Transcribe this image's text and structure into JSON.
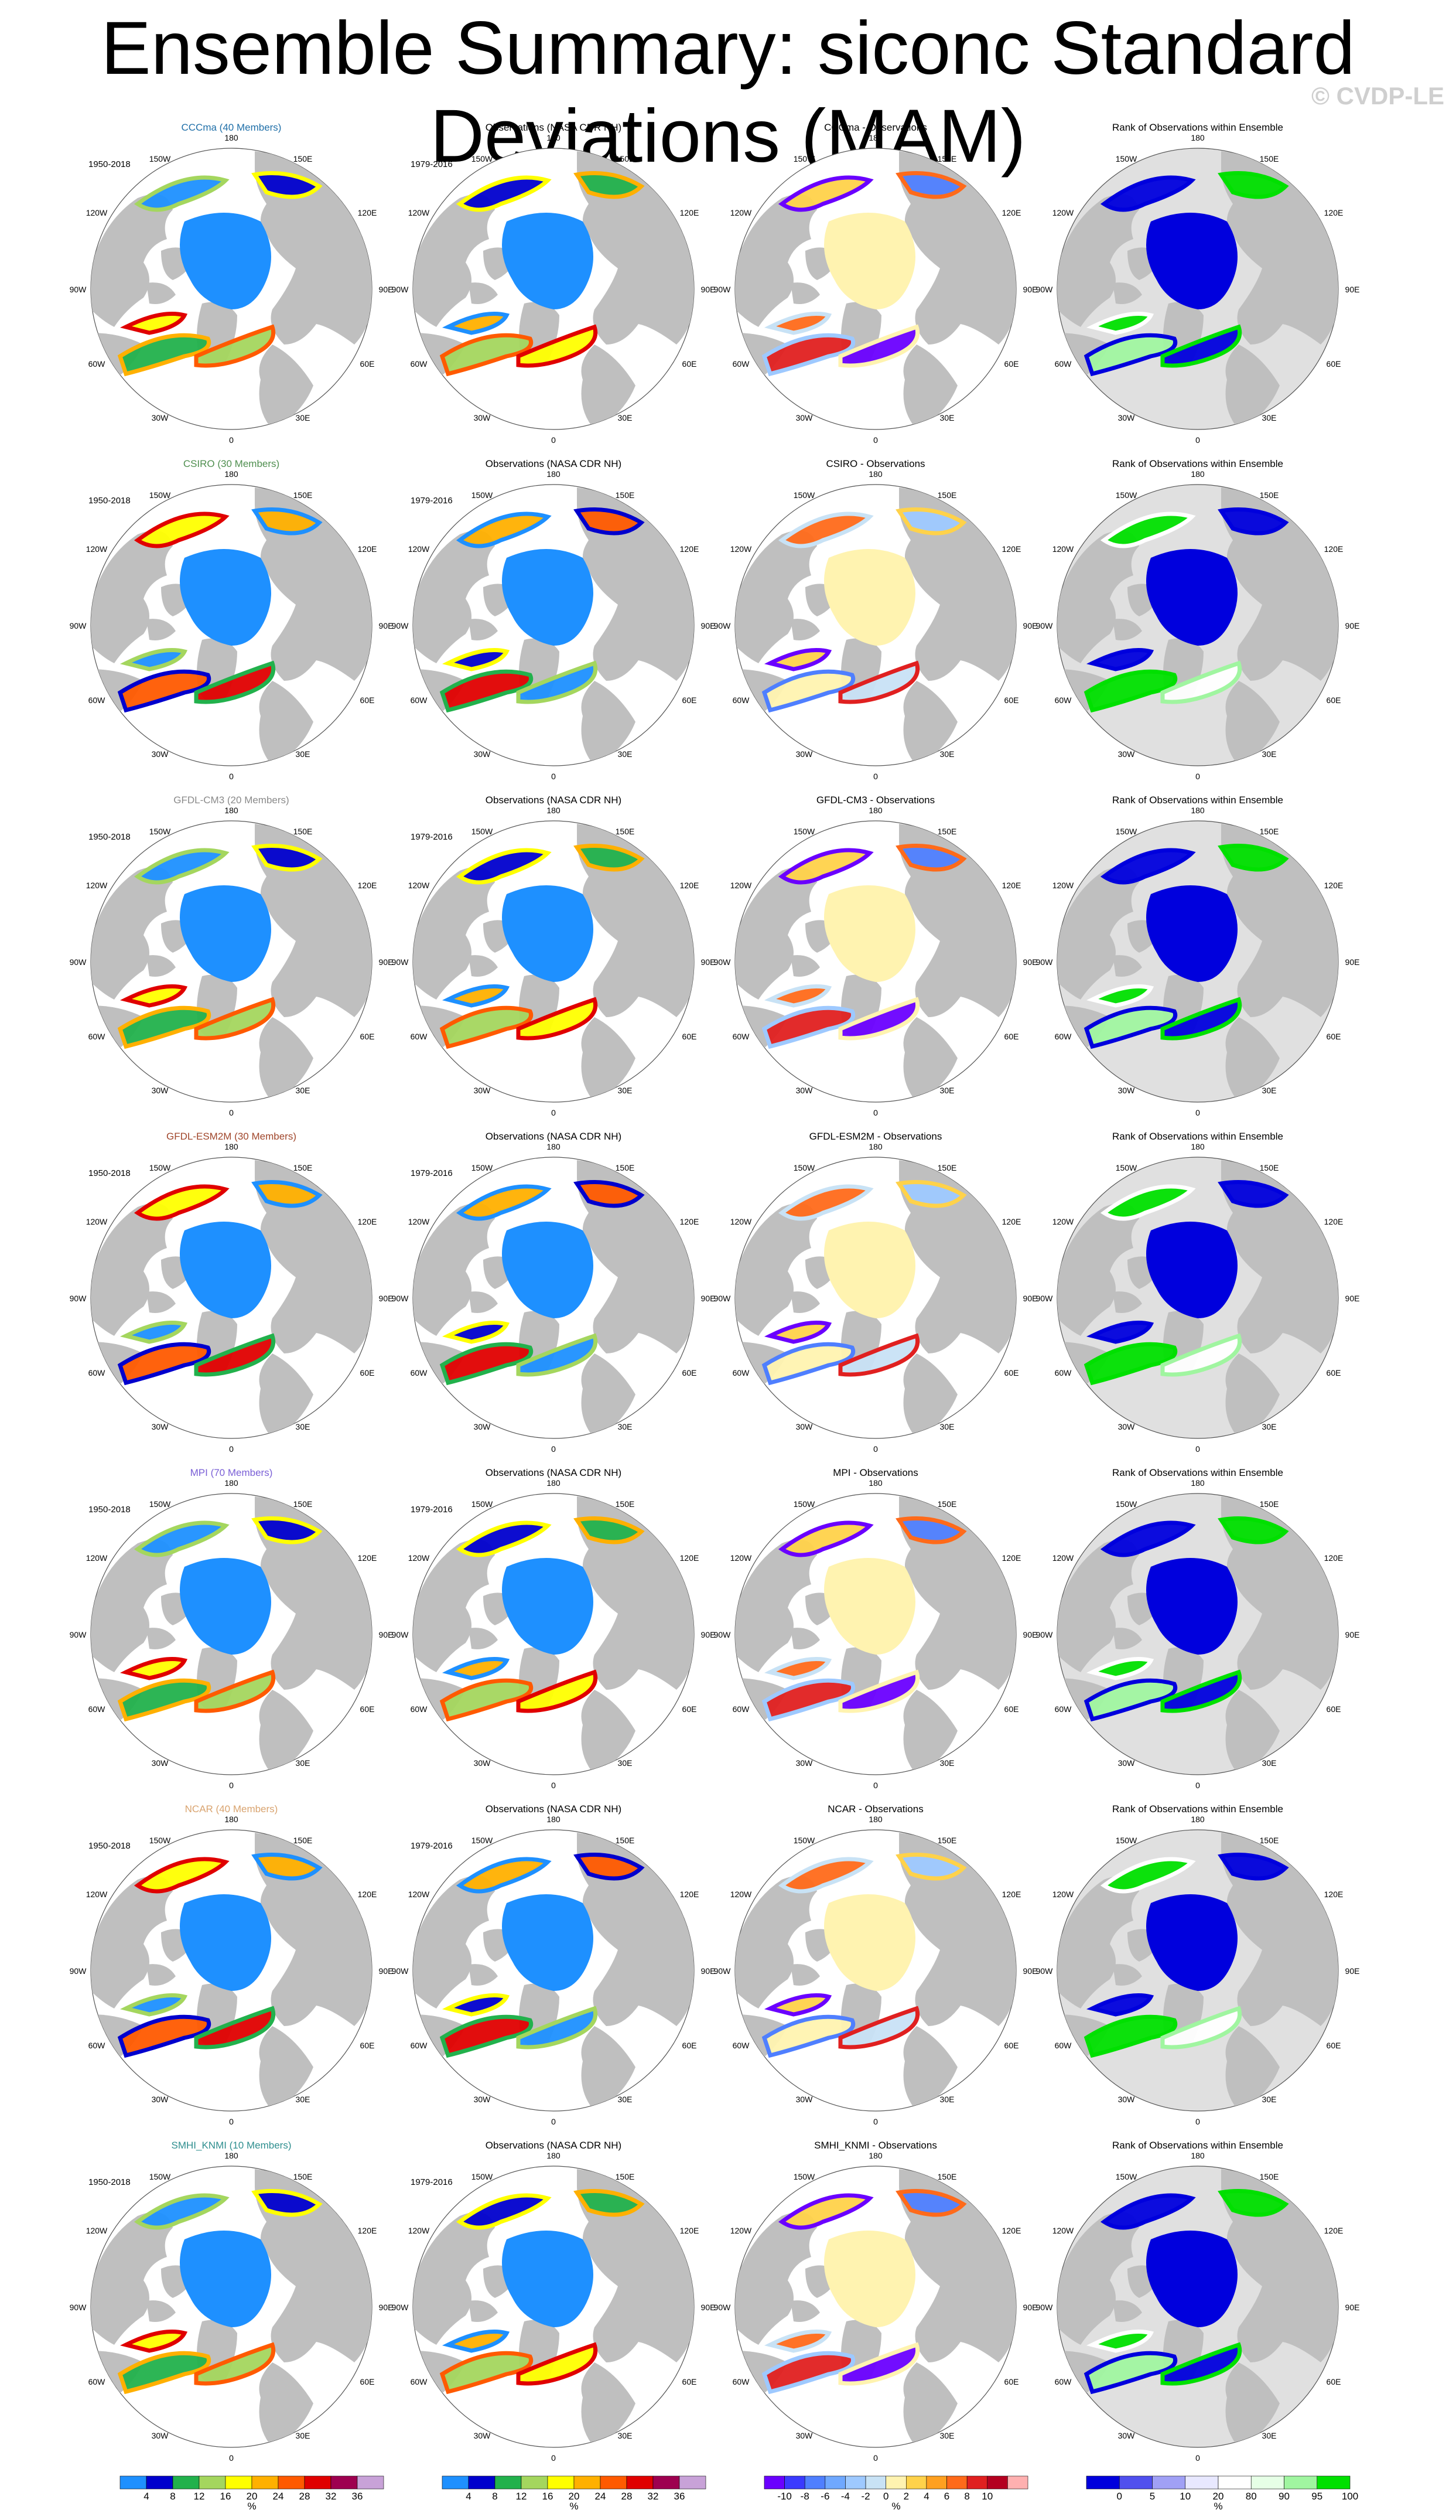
{
  "title": "Ensemble Summary: siconc Standard Deviations (MAM)",
  "copyright": "© CVDP-LE",
  "model_periods": "1950-2018",
  "obs_period": "1979-2016",
  "obs_title": "Observations (NASA CDR NH)",
  "rank_title": "Rank of Observations within Ensemble",
  "models": [
    {
      "title": "CCCma (40 Members)",
      "diff_title": "CCCma - Observations",
      "color": "#1f6fa8"
    },
    {
      "title": "CSIRO (30 Members)",
      "diff_title": "CSIRO - Observations",
      "color": "#4f8f4f"
    },
    {
      "title": "GFDL-CM3 (20 Members)",
      "diff_title": "GFDL-CM3 - Observations",
      "color": "#8a8a8a"
    },
    {
      "title": "GFDL-ESM2M (30 Members)",
      "diff_title": "GFDL-ESM2M - Observations",
      "color": "#a0462b"
    },
    {
      "title": "MPI (70 Members)",
      "diff_title": "MPI - Observations",
      "color": "#7a5fd6"
    },
    {
      "title": "NCAR (40 Members)",
      "diff_title": "NCAR - Observations",
      "color": "#d9a470"
    },
    {
      "title": "SMHI_KNMI (10 Members)",
      "diff_title": "SMHI_KNMI - Observations",
      "color": "#2f8f8f"
    }
  ],
  "map_labels": {
    "top": "180",
    "bottom": "0",
    "upper_left": "150W",
    "upper_right": "150E",
    "mid_left_upper": "120W",
    "mid_right_upper": "120E",
    "left": "90W",
    "right": "90E",
    "mid_left_lower": "60W",
    "mid_right_lower": "60E",
    "lower_left": "30W",
    "lower_right": "30E"
  },
  "colorbars": {
    "sd": {
      "labels": [
        "4",
        "8",
        "12",
        "16",
        "20",
        "24",
        "28",
        "32",
        "36"
      ],
      "unit": "%",
      "colors": [
        "#1e90ff",
        "#0000cd",
        "#22b14c",
        "#a4d65e",
        "#ffff00",
        "#ffb000",
        "#ff5a00",
        "#e00000",
        "#9e0050",
        "#c8a2d8"
      ]
    },
    "diff": {
      "labels": [
        "-10",
        "-8",
        "-6",
        "-4",
        "-2",
        "0",
        "2",
        "4",
        "6",
        "8",
        "10"
      ],
      "unit": "%",
      "colors": [
        "#6a00ff",
        "#3a3aff",
        "#4f7fff",
        "#6fa8ff",
        "#9ec9ff",
        "#c8e2f5",
        "#fff3b0",
        "#ffd24a",
        "#ffa020",
        "#ff6a1a",
        "#e02020",
        "#b40020",
        "#ffb0b0"
      ]
    },
    "rank": {
      "labels": [
        "0",
        "5",
        "10",
        "20",
        "80",
        "90",
        "95",
        "100"
      ],
      "unit": "%",
      "colors": [
        "#0000dd",
        "#5050ee",
        "#a0a0f5",
        "#e8e8ff",
        "#ffffff",
        "#e6ffe6",
        "#a0f5a0",
        "#00e000"
      ]
    }
  }
}
